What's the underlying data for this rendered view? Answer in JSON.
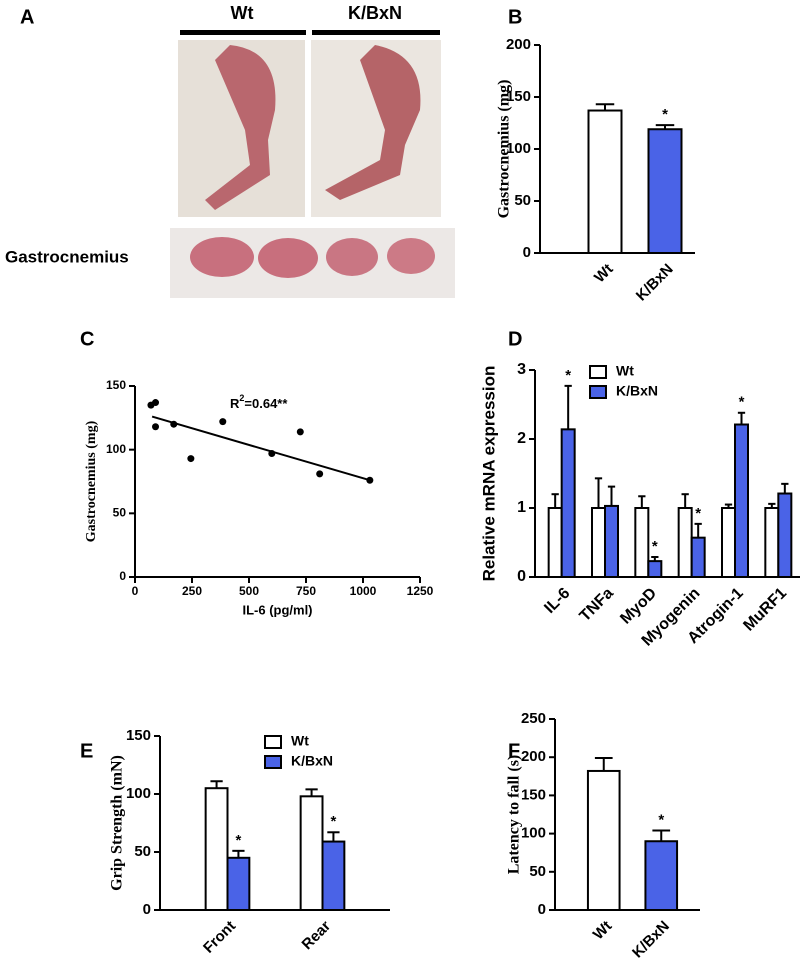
{
  "panel_a": {
    "label": "A",
    "columns": [
      "Wt",
      "K/BxN"
    ],
    "caption": "Gastrocnemius"
  },
  "chart_data": [
    {
      "panel": "B",
      "type": "bar",
      "ylabel": "Gastrocnemius (mg)",
      "categories": [
        "Wt",
        "K/BxN"
      ],
      "values": [
        137,
        119
      ],
      "errors": [
        6,
        4
      ],
      "stars": [
        null,
        "*"
      ],
      "colors": [
        "#ffffff",
        "#4a63e7"
      ],
      "ylim": [
        0,
        200
      ],
      "yticks": [
        0,
        50,
        100,
        150,
        200
      ]
    },
    {
      "panel": "C",
      "type": "scatter",
      "ylabel": "Gastrocnemius (mg)",
      "xlabel": "IL-6 (pg/ml)",
      "x": [
        70,
        90,
        90,
        170,
        245,
        385,
        600,
        725,
        810,
        1030
      ],
      "values": [
        135,
        137,
        118,
        120,
        93,
        122,
        97,
        114,
        81,
        76
      ],
      "color": "#000000",
      "fit_line": {
        "x": [
          75,
          1030
        ],
        "y": [
          126,
          76
        ]
      },
      "annotation": {
        "text": "R",
        "sup": "2",
        "rest": "=0.64**"
      },
      "xlim": [
        0,
        1250
      ],
      "xticks": [
        0,
        250,
        500,
        750,
        1000,
        1250
      ],
      "ylim": [
        0,
        150
      ],
      "yticks": [
        0,
        50,
        100,
        150
      ]
    },
    {
      "panel": "D",
      "type": "bar",
      "ylabel": "Relative mRNA expression",
      "categories": [
        "IL-6",
        "TNFa",
        "MyoD",
        "Myogenin",
        "Atrogin-1",
        "MuRF1"
      ],
      "series": [
        {
          "name": "Wt",
          "color": "#ffffff",
          "values": [
            1,
            1,
            1,
            1,
            1,
            1
          ],
          "errors": [
            0.2,
            0.43,
            0.17,
            0.2,
            0.05,
            0.06
          ],
          "stars": [
            null,
            null,
            null,
            null,
            null,
            null
          ]
        },
        {
          "name": "K/BxN",
          "color": "#4a63e7",
          "values": [
            2.14,
            1.03,
            0.23,
            0.57,
            2.21,
            1.21
          ],
          "errors": [
            0.63,
            0.28,
            0.06,
            0.2,
            0.17,
            0.14
          ],
          "stars": [
            "*",
            null,
            "*",
            "*",
            "*",
            null
          ]
        }
      ],
      "ylim": [
        0,
        3
      ],
      "yticks": [
        0,
        1,
        2,
        3
      ]
    },
    {
      "panel": "E",
      "type": "bar",
      "ylabel": "Grip  Strength (mN)",
      "categories": [
        "Front",
        "Rear"
      ],
      "series": [
        {
          "name": "Wt",
          "color": "#ffffff",
          "values": [
            105,
            98
          ],
          "errors": [
            6,
            6
          ],
          "stars": [
            null,
            null
          ]
        },
        {
          "name": "K/BxN",
          "color": "#4a63e7",
          "values": [
            45,
            59
          ],
          "errors": [
            6,
            8
          ],
          "stars": [
            "*",
            "*"
          ]
        }
      ],
      "ylim": [
        0,
        150
      ],
      "yticks": [
        0,
        50,
        100,
        150
      ]
    },
    {
      "panel": "F",
      "type": "bar",
      "ylabel": "Latency to fall (s)",
      "categories": [
        "Wt",
        "K/BxN"
      ],
      "values": [
        182,
        90
      ],
      "errors": [
        17,
        14
      ],
      "stars": [
        null,
        "*"
      ],
      "colors": [
        "#ffffff",
        "#4a63e7"
      ],
      "ylim": [
        0,
        250
      ],
      "yticks": [
        0,
        50,
        100,
        150,
        200,
        250
      ]
    }
  ]
}
